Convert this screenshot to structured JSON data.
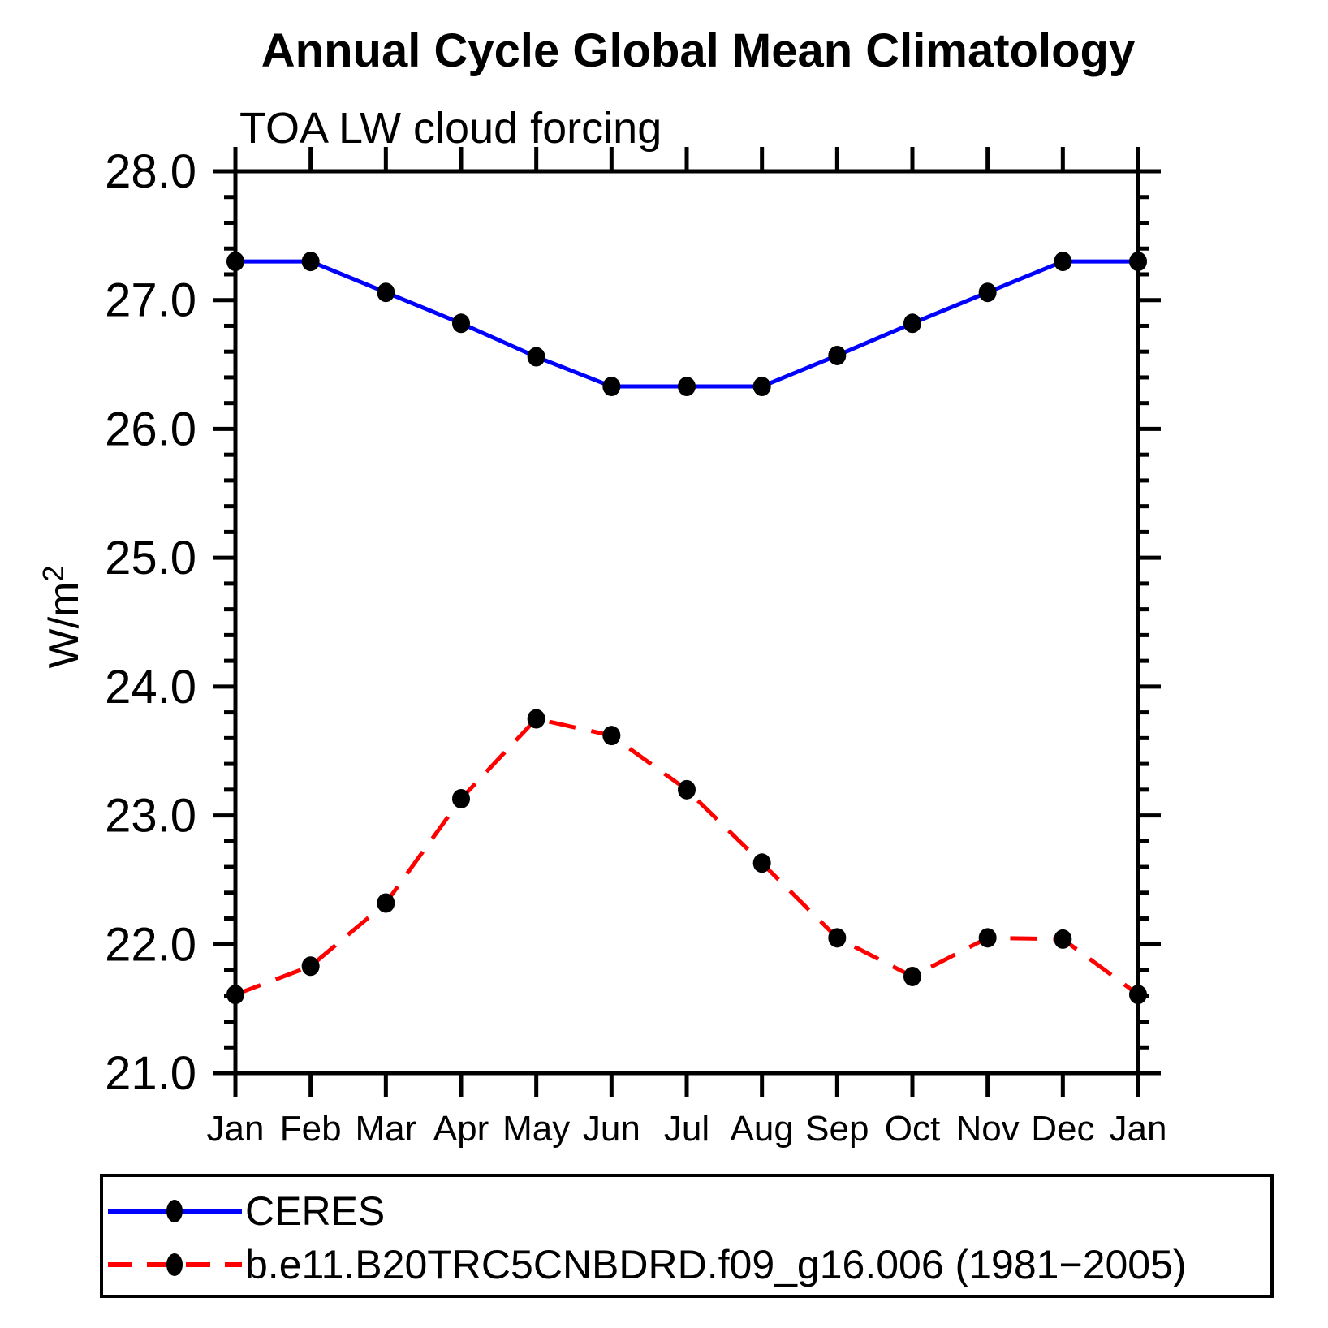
{
  "title": "Annual Cycle Global Mean Climatology",
  "subtitle": "TOA LW cloud forcing",
  "chart_data": {
    "type": "line",
    "title": "Annual Cycle Global Mean Climatology",
    "subtitle": "TOA LW cloud forcing",
    "ylabel_base": "W/m",
    "ylabel_exp": "2",
    "xlabel": "",
    "categories": [
      "Jan",
      "Feb",
      "Mar",
      "Apr",
      "May",
      "Jun",
      "Jul",
      "Aug",
      "Sep",
      "Oct",
      "Nov",
      "Dec",
      "Jan"
    ],
    "ylim": [
      21.0,
      28.0
    ],
    "ytick_step": 1.0,
    "ytick_minor_step": 0.2,
    "ytick_label_format": "one-decimal",
    "grid": "off",
    "legend_position": "bottom-box",
    "marker_color": "#000000",
    "axis_color": "#000000",
    "series": [
      {
        "name": "CERES",
        "color": "#0000ff",
        "line_style": "solid",
        "values": [
          27.3,
          27.3,
          27.06,
          26.82,
          26.56,
          26.33,
          26.33,
          26.33,
          26.57,
          26.82,
          27.06,
          27.3,
          27.3
        ]
      },
      {
        "name": "b.e11.B20TRC5CNBDRD.f09_g16.006 (1981−2005)",
        "color": "#ff0000",
        "line_style": "dashed",
        "values": [
          21.61,
          21.83,
          22.32,
          23.13,
          23.75,
          23.62,
          23.2,
          22.63,
          22.05,
          21.75,
          22.05,
          22.04,
          21.61
        ]
      }
    ]
  }
}
